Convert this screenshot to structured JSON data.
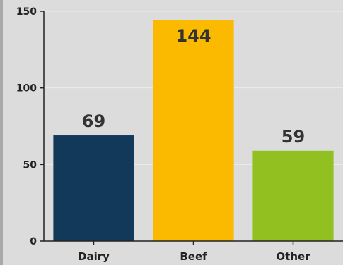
{
  "chart_data": {
    "type": "bar",
    "categories": [
      "Dairy",
      "Beef",
      "Other"
    ],
    "values": [
      69,
      144,
      59
    ],
    "data_labels": [
      "69",
      "144",
      "59"
    ],
    "colors": [
      "#12385a",
      "#fbb900",
      "#93c021"
    ],
    "ylim": [
      0,
      150
    ],
    "yticks": [
      0,
      50,
      100,
      150
    ],
    "ytick_labels": [
      "0",
      "50",
      "100",
      "150"
    ],
    "title": "",
    "xlabel": "",
    "ylabel": "",
    "grid": true
  }
}
